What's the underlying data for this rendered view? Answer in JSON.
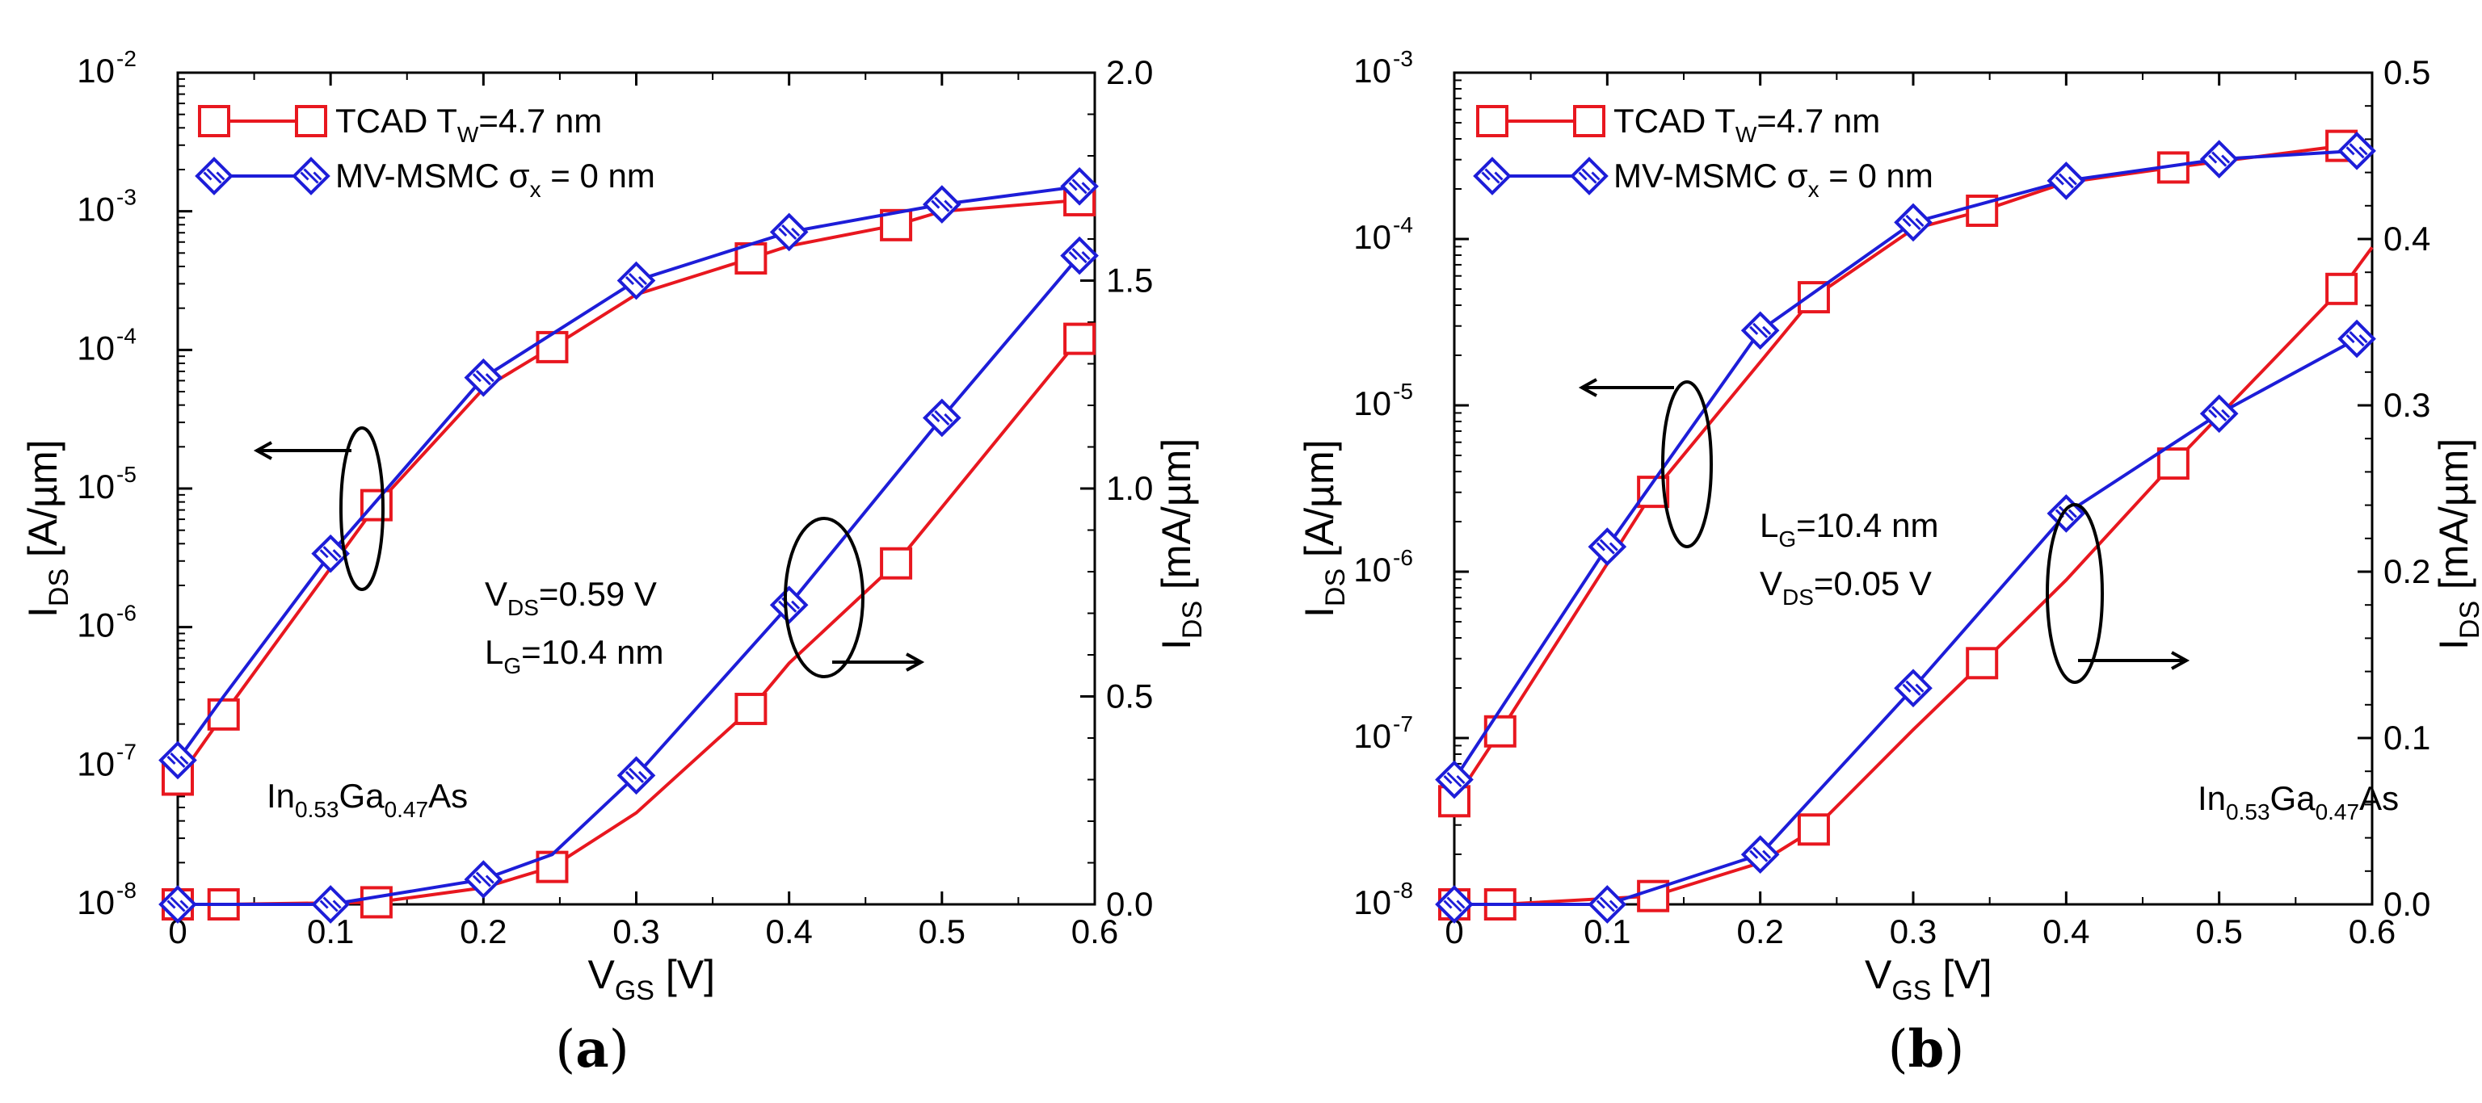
{
  "chart_data": [
    {
      "type": "line",
      "panel_label": "a",
      "xlabel": "V",
      "xlabel_sub": "GS",
      "xlabel_unit": " [V]",
      "xlim": [
        0,
        0.6
      ],
      "x_ticks": [
        "0",
        "0.1",
        "0.2",
        "0.3",
        "0.4",
        "0.5",
        "0.6"
      ],
      "left_axis": {
        "scale": "log",
        "ylim_exp": [
          -8,
          -2
        ],
        "label": "I",
        "label_sub": "DS",
        "label_unit": " [A/µm]",
        "ticks": [
          {
            "base": "10",
            "exp": "-8"
          },
          {
            "base": "10",
            "exp": "-7"
          },
          {
            "base": "10",
            "exp": "-6"
          },
          {
            "base": "10",
            "exp": "-5"
          },
          {
            "base": "10",
            "exp": "-4"
          },
          {
            "base": "10",
            "exp": "-3"
          },
          {
            "base": "10",
            "exp": "-2"
          }
        ]
      },
      "right_axis": {
        "scale": "linear",
        "ylim": [
          0,
          2.0
        ],
        "label": "I",
        "label_sub": "DS",
        "label_unit": " [mA/µm]",
        "ticks": [
          "0.0",
          "0.5",
          "1.0",
          "1.5",
          "2.0"
        ]
      },
      "legend": {
        "placement": "top-left",
        "entries": [
          {
            "series": "TCAD",
            "text": "TCAD T",
            "sub": "W",
            "tail": "=4.7 nm"
          },
          {
            "series": "MVMSMC",
            "text": "MV-MSMC σ",
            "sub": "x",
            "tail": " = 0 nm"
          }
        ]
      },
      "annotations": [
        {
          "lines": [
            {
              "text": "V",
              "sub": "DS",
              "tail": "=0.59 V"
            },
            {
              "text": "L",
              "sub": "G",
              "tail": "=10.4 nm"
            }
          ],
          "place": "center"
        },
        {
          "lines": [
            {
              "text": "In",
              "sub": "0.53",
              "tail": "Ga",
              "sub2": "0.47",
              "tail2": "As"
            }
          ],
          "place": "bottom-left"
        }
      ],
      "series": [
        {
          "name": "TCAD",
          "color": "#e8171f",
          "marker": "square",
          "axis": "left",
          "x": [
            0,
            0.03,
            0.13,
            0.2,
            0.245,
            0.3,
            0.375,
            0.4,
            0.47,
            0.5,
            0.59
          ],
          "log10_y": [
            -7.1,
            -6.63,
            -5.12,
            -4.28,
            -3.98,
            -3.6,
            -3.34,
            -3.25,
            -3.1,
            -3.0,
            -2.92
          ],
          "marker_x": [
            0,
            0.03,
            0.13,
            0.245,
            0.375,
            0.47,
            0.59
          ]
        },
        {
          "name": "MVMSMC",
          "color": "#1d1dd8",
          "marker": "diamond",
          "axis": "left",
          "x": [
            0,
            0.03,
            0.1,
            0.2,
            0.3,
            0.4,
            0.5,
            0.59
          ],
          "log10_y": [
            -6.96,
            -6.5,
            -5.47,
            -4.2,
            -3.5,
            -3.15,
            -2.95,
            -2.82
          ],
          "marker_x": [
            0,
            0.1,
            0.2,
            0.3,
            0.4,
            0.5,
            0.59
          ]
        },
        {
          "name": "TCAD",
          "color": "#e8171f",
          "marker": "square",
          "axis": "right",
          "x": [
            0,
            0.03,
            0.13,
            0.2,
            0.245,
            0.3,
            0.375,
            0.4,
            0.47,
            0.59
          ],
          "y": [
            0.0,
            0.0,
            0.005,
            0.04,
            0.09,
            0.22,
            0.47,
            0.58,
            0.82,
            1.36
          ],
          "marker_x": [
            0,
            0.03,
            0.13,
            0.245,
            0.375,
            0.47,
            0.59
          ]
        },
        {
          "name": "MVMSMC",
          "color": "#1d1dd8",
          "marker": "diamond",
          "axis": "right",
          "x": [
            0,
            0.1,
            0.2,
            0.245,
            0.3,
            0.4,
            0.5,
            0.59
          ],
          "y": [
            0.0,
            0.0,
            0.06,
            0.12,
            0.31,
            0.72,
            1.17,
            1.56
          ],
          "marker_x": [
            0,
            0.1,
            0.2,
            0.3,
            0.4,
            0.5,
            0.59
          ]
        }
      ]
    },
    {
      "type": "line",
      "panel_label": "b",
      "xlabel": "V",
      "xlabel_sub": "GS",
      "xlabel_unit": " [V]",
      "xlim": [
        0,
        0.6
      ],
      "x_ticks": [
        "0",
        "0.1",
        "0.2",
        "0.3",
        "0.4",
        "0.5",
        "0.6"
      ],
      "left_axis": {
        "scale": "log",
        "ylim_exp": [
          -8,
          -3
        ],
        "label": "I",
        "label_sub": "DS",
        "label_unit": " [A/µm]",
        "ticks": [
          {
            "base": "10",
            "exp": "-8"
          },
          {
            "base": "10",
            "exp": "-7"
          },
          {
            "base": "10",
            "exp": "-6"
          },
          {
            "base": "10",
            "exp": "-5"
          },
          {
            "base": "10",
            "exp": "-4"
          },
          {
            "base": "10",
            "exp": "-3"
          }
        ]
      },
      "right_axis": {
        "scale": "linear",
        "ylim": [
          0,
          0.5
        ],
        "label": "I",
        "label_sub": "DS",
        "label_unit": " [mA/µm]",
        "ticks": [
          "0.0",
          "0.1",
          "0.2",
          "0.3",
          "0.4",
          "0.5"
        ]
      },
      "legend": {
        "placement": "top-left",
        "entries": [
          {
            "series": "TCAD",
            "text": "TCAD T",
            "sub": "W",
            "tail": "=4.7 nm"
          },
          {
            "series": "MVMSMC",
            "text": "MV-MSMC σ",
            "sub": "x",
            "tail": " = 0 nm"
          }
        ]
      },
      "annotations": [
        {
          "lines": [
            {
              "text": "L",
              "sub": "G",
              "tail": "=10.4 nm"
            },
            {
              "text": "V",
              "sub": "DS",
              "tail": "=0.05 V"
            }
          ],
          "place": "center"
        },
        {
          "lines": [
            {
              "text": "In",
              "sub": "0.53",
              "tail": "Ga",
              "sub2": "0.47",
              "tail2": "As"
            }
          ],
          "place": "bottom-right"
        }
      ],
      "series": [
        {
          "name": "TCAD",
          "color": "#e8171f",
          "marker": "square",
          "axis": "left",
          "x": [
            0,
            0.03,
            0.13,
            0.235,
            0.3,
            0.345,
            0.4,
            0.47,
            0.58
          ],
          "log10_y": [
            -7.38,
            -6.96,
            -5.52,
            -4.35,
            -3.94,
            -3.83,
            -3.66,
            -3.57,
            -3.44
          ],
          "marker_x": [
            0,
            0.03,
            0.13,
            0.235,
            0.345,
            0.47,
            0.58
          ]
        },
        {
          "name": "MVMSMC",
          "color": "#1d1dd8",
          "marker": "diamond",
          "axis": "left",
          "x": [
            0,
            0.1,
            0.2,
            0.3,
            0.4,
            0.5,
            0.59
          ],
          "log10_y": [
            -7.25,
            -5.85,
            -4.55,
            -3.9,
            -3.65,
            -3.52,
            -3.47
          ],
          "marker_x": [
            0,
            0.1,
            0.2,
            0.3,
            0.4,
            0.5,
            0.59
          ]
        },
        {
          "name": "TCAD",
          "color": "#e8171f",
          "marker": "square",
          "axis": "right",
          "x": [
            0,
            0.03,
            0.13,
            0.2,
            0.235,
            0.3,
            0.345,
            0.4,
            0.47,
            0.58,
            0.6
          ],
          "y": [
            0.0,
            0.0,
            0.005,
            0.025,
            0.045,
            0.105,
            0.145,
            0.195,
            0.265,
            0.37,
            0.395
          ],
          "marker_x": [
            0,
            0.03,
            0.13,
            0.235,
            0.345,
            0.47,
            0.58
          ]
        },
        {
          "name": "MVMSMC",
          "color": "#1d1dd8",
          "marker": "diamond",
          "axis": "right",
          "x": [
            0,
            0.1,
            0.2,
            0.3,
            0.4,
            0.5,
            0.59
          ],
          "y": [
            0.0,
            0.0,
            0.03,
            0.13,
            0.235,
            0.295,
            0.34
          ],
          "marker_x": [
            0,
            0.1,
            0.2,
            0.3,
            0.4,
            0.5,
            0.59
          ]
        }
      ]
    }
  ]
}
